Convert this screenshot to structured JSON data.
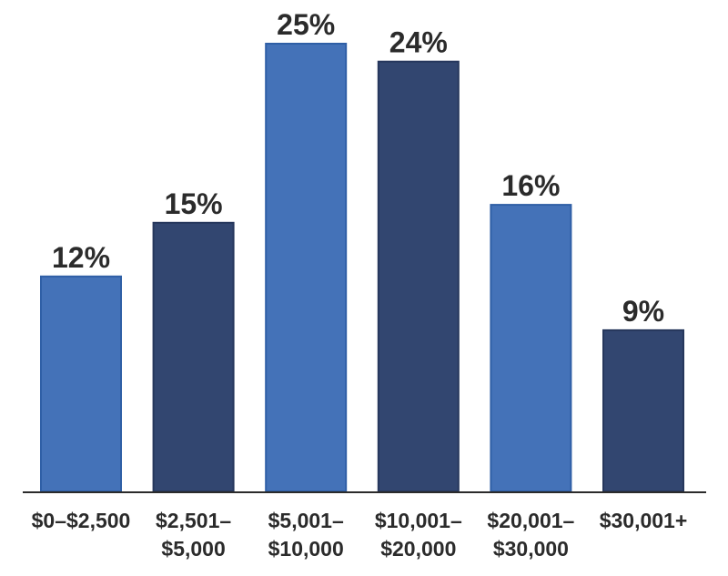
{
  "chart_data": {
    "type": "bar",
    "title": "",
    "xlabel": "",
    "ylabel": "",
    "ylim": [
      0,
      25
    ],
    "grid": false,
    "categories": [
      [
        "$0–$2,500"
      ],
      [
        "$2,501–",
        "$5,000"
      ],
      [
        "$5,001–",
        "$10,000"
      ],
      [
        "$10,001–",
        "$20,000"
      ],
      [
        "$20,001–",
        "$30,000"
      ],
      [
        "$30,001+"
      ]
    ],
    "values": [
      12,
      15,
      25,
      24,
      16,
      9
    ],
    "value_labels": [
      "12%",
      "15%",
      "25%",
      "24%",
      "16%",
      "9%"
    ],
    "colors": {
      "light_bar": "#4472b8",
      "light_bar_edge": "#2f5fa6",
      "dark_bar": "#324670",
      "dark_bar_edge": "#26375c",
      "axis": "#2b2b2b"
    },
    "bar_colors": [
      "light",
      "dark",
      "light",
      "dark",
      "light",
      "dark"
    ]
  }
}
